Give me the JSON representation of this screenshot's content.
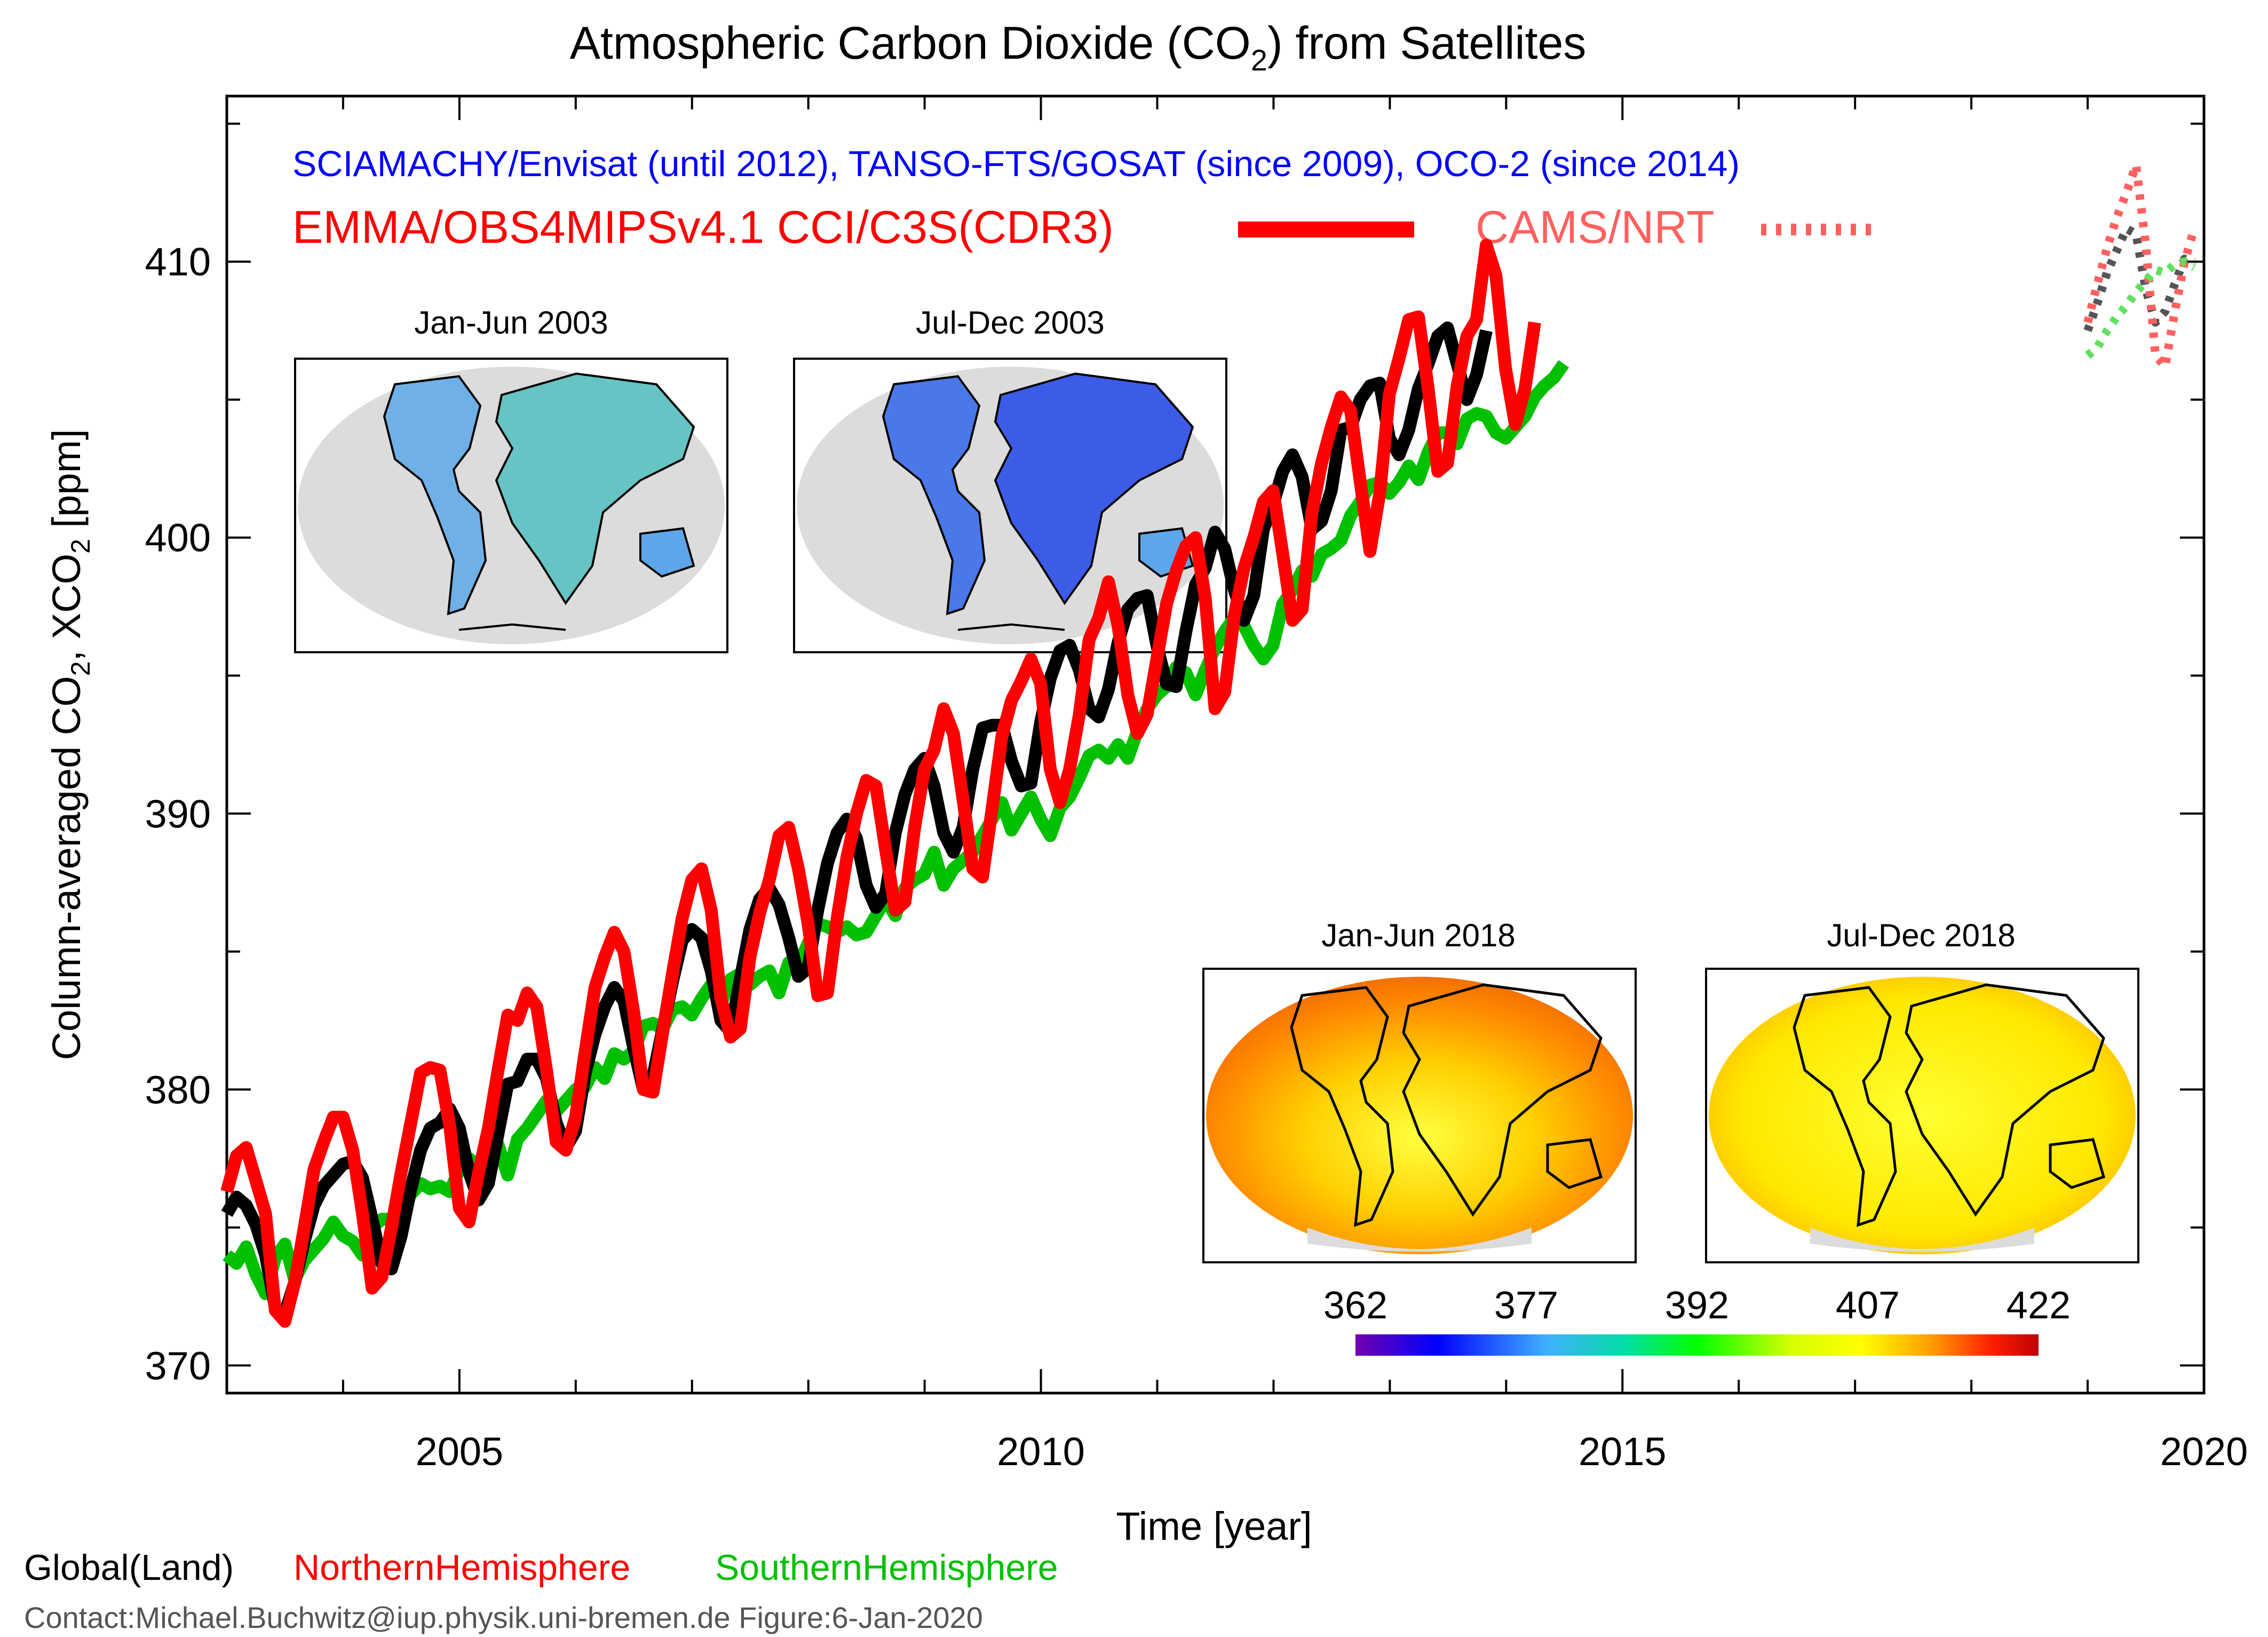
{
  "title": {
    "main": "Atmospheric Carbon Dioxide (CO",
    "sub": "2",
    "tail": ") from Satellites"
  },
  "subtitle_blue": "SCIAMACHY/Envisat (until 2012), TANSO-FTS/GOSAT (since 2009), OCO-2 (since 2014)",
  "legend": {
    "red_product": "EMMA/OBS4MIPSv4.1 CCI/C3S(CDR3)",
    "nrt_product": "CAMS/NRT",
    "global": "Global(Land)",
    "north": "NorthernHemisphere",
    "south": "SouthernHemisphere"
  },
  "ylabel": {
    "p1": "Column-averaged CO",
    "s1": "2",
    "p2": ", XCO",
    "s2": "2",
    "p3": " [ppm]"
  },
  "contact": "Contact:Michael.Buchwitz@iup.physik.uni-bremen.de Figure:6-Jan-2020",
  "maps": {
    "m2003a": "Jan-Jun 2003",
    "m2003b": "Jul-Dec 2003",
    "m2018a": "Jan-Jun 2018",
    "m2018b": "Jul-Dec 2018"
  },
  "colorbar": {
    "ticks": [
      "362",
      "377",
      "392",
      "407",
      "422"
    ]
  },
  "colors": {
    "global": "#000000",
    "north": "#ff0000",
    "south": "#00c000",
    "nrt": "#ff6060",
    "blue": "#0000ff",
    "axis": "#000000"
  },
  "chart_data": {
    "type": "line",
    "title": "Atmospheric Carbon Dioxide (CO2) from Satellites",
    "xlabel": "Time [year]",
    "ylabel": "Column-averaged CO2, XCO2 [ppm]",
    "xlim": [
      2003,
      2020
    ],
    "ylim": [
      369,
      416
    ],
    "xticks": [
      2005,
      2010,
      2015,
      2020
    ],
    "yticks": [
      370,
      380,
      390,
      400,
      410
    ],
    "series": [
      {
        "name": "Global(Land)",
        "color": "#000000",
        "style": "solid",
        "x_start": 2003.0,
        "x_step": 0.0833,
        "values": [
          375.5,
          376.1,
          375.8,
          375.1,
          374.0,
          372.1,
          371.9,
          373.0,
          374.5,
          375.8,
          376.5,
          376.9,
          377.3,
          377.4,
          376.8,
          375.3,
          373.7,
          373.5,
          374.7,
          376.4,
          377.8,
          378.6,
          378.8,
          379.3,
          378.6,
          377.0,
          376.0,
          376.6,
          378.4,
          380.2,
          380.3,
          381.1,
          381.1,
          380.4,
          378.8,
          377.9,
          378.5,
          380.6,
          382.0,
          383.0,
          383.7,
          383.2,
          381.5,
          380.0,
          380.5,
          382.2,
          383.9,
          385.4,
          385.8,
          385.5,
          384.3,
          382.5,
          382.1,
          384.0,
          385.8,
          386.9,
          387.3,
          386.7,
          385.5,
          384.1,
          384.4,
          386.5,
          388.2,
          389.3,
          389.8,
          389.1,
          387.4,
          386.6,
          387.1,
          389.3,
          390.7,
          391.6,
          392.0,
          391.0,
          389.3,
          388.6,
          389.5,
          391.6,
          393.1,
          393.2,
          393.2,
          391.9,
          391.0,
          391.1,
          393.3,
          394.9,
          395.9,
          396.1,
          395.2,
          393.8,
          393.5,
          394.5,
          396.2,
          397.4,
          397.8,
          397.9,
          396.1,
          394.7,
          394.6,
          396.6,
          398.3,
          398.9,
          400.2,
          399.6,
          398.1,
          397.0,
          397.9,
          400.3,
          401.2,
          402.4,
          403.0,
          402.2,
          400.3,
          400.6,
          401.7,
          403.9,
          404.0,
          405.0,
          405.5,
          405.6,
          403.6,
          403.0,
          403.9,
          405.4,
          406.3,
          407.3,
          407.6,
          406.3,
          405.0,
          405.9,
          407.5
        ]
      },
      {
        "name": "NorthernHemisphere",
        "color": "#ff0000",
        "style": "solid",
        "x_start": 2003.0,
        "x_step": 0.0833,
        "values": [
          376.3,
          377.6,
          377.9,
          376.7,
          375.5,
          372.0,
          371.6,
          373.0,
          375.0,
          377.1,
          378.1,
          379.0,
          379.0,
          377.8,
          375.5,
          372.8,
          373.2,
          375.0,
          377.0,
          378.8,
          380.6,
          380.8,
          380.7,
          378.7,
          375.7,
          375.2,
          377.0,
          378.6,
          380.7,
          382.7,
          382.5,
          383.5,
          383.0,
          380.7,
          378.1,
          377.8,
          379.0,
          381.4,
          383.7,
          384.8,
          385.7,
          385.0,
          382.8,
          380.0,
          379.9,
          382.1,
          384.2,
          386.2,
          387.6,
          388.0,
          386.5,
          383.3,
          381.9,
          382.2,
          384.8,
          386.4,
          387.6,
          389.2,
          389.5,
          388.0,
          386.0,
          383.4,
          383.5,
          386.2,
          388.4,
          390.0,
          391.2,
          391.0,
          388.7,
          386.5,
          386.8,
          389.5,
          391.6,
          392.3,
          393.8,
          392.9,
          390.5,
          388.0,
          387.7,
          390.2,
          392.8,
          394.1,
          394.8,
          395.6,
          394.7,
          391.6,
          390.4,
          391.6,
          393.6,
          396.3,
          397.1,
          398.4,
          396.8,
          394.3,
          392.9,
          393.6,
          395.6,
          397.6,
          398.8,
          399.7,
          400.0,
          397.8,
          393.8,
          394.4,
          397.2,
          398.9,
          400.0,
          401.3,
          401.7,
          399.4,
          397.0,
          397.4,
          400.9,
          402.7,
          404.0,
          405.1,
          404.6,
          402.0,
          399.5,
          401.6,
          405.2,
          406.5,
          407.9,
          408.0,
          405.4,
          402.4,
          402.7,
          405.5,
          407.3,
          407.9,
          410.6,
          409.5,
          406.1,
          404.1,
          405.4,
          407.8
        ]
      },
      {
        "name": "SouthernHemisphere",
        "color": "#00c000",
        "style": "solid",
        "x_start": 2003.0,
        "x_step": 0.0833,
        "values": [
          374.0,
          373.7,
          374.3,
          373.3,
          372.6,
          373.9,
          374.4,
          373.1,
          373.8,
          374.2,
          374.6,
          375.2,
          374.7,
          374.5,
          374.0,
          375.0,
          375.3,
          375.3,
          375.6,
          376.2,
          376.6,
          376.4,
          376.5,
          376.3,
          377.1,
          377.5,
          377.2,
          377.8,
          378.0,
          376.9,
          378.2,
          378.6,
          379.1,
          379.6,
          379.2,
          379.6,
          380.0,
          380.1,
          380.8,
          380.4,
          381.3,
          381.1,
          381.4,
          382.3,
          382.4,
          382.2,
          382.9,
          383.0,
          382.7,
          383.3,
          383.8,
          383.1,
          384.0,
          384.2,
          383.8,
          384.1,
          384.3,
          383.5,
          384.6,
          384.5,
          385.3,
          386.0,
          385.9,
          385.7,
          385.9,
          385.6,
          385.7,
          386.3,
          386.9,
          386.3,
          387.3,
          387.6,
          387.8,
          388.6,
          387.4,
          388.0,
          388.3,
          388.6,
          389.2,
          389.8,
          390.4,
          389.4,
          390.0,
          390.6,
          389.8,
          389.2,
          390.2,
          390.6,
          391.3,
          392.1,
          392.3,
          392.0,
          392.5,
          392.0,
          393.0,
          393.8,
          394.3,
          394.6,
          395.3,
          395.1,
          394.3,
          395.2,
          396.0,
          396.6,
          397.1,
          396.8,
          396.1,
          395.6,
          396.1,
          397.6,
          398.1,
          398.8,
          398.6,
          399.4,
          399.6,
          399.9,
          400.8,
          401.3,
          401.9,
          402.0,
          401.6,
          402.0,
          402.6,
          402.1,
          403.1,
          403.8,
          403.8,
          403.4,
          404.3,
          404.5,
          404.4,
          403.8,
          403.6,
          404.0,
          404.4,
          405.1,
          405.5,
          405.8,
          406.3
        ]
      },
      {
        "name": "CAMS/NRT Global",
        "color": "#555555",
        "style": "dotted",
        "x_start": 2019.0,
        "x_step": 0.0833,
        "values": [
          407.5,
          408.5,
          409.6,
          410.4,
          411.2,
          411.0,
          409.0,
          407.8,
          408.2,
          409.2,
          410.1,
          410.0
        ]
      },
      {
        "name": "CAMS/NRT North",
        "color": "#ff6060",
        "style": "dotted",
        "x_start": 2019.0,
        "x_step": 0.0833,
        "values": [
          407.8,
          409.2,
          410.5,
          411.6,
          412.5,
          413.5,
          410.6,
          406.6,
          406.2,
          408.2,
          410.0,
          411.2
        ]
      },
      {
        "name": "CAMS/NRT South",
        "color": "#60e060",
        "style": "dotted",
        "x_start": 2019.0,
        "x_step": 0.0833,
        "values": [
          406.6,
          406.9,
          407.5,
          408.0,
          408.4,
          408.9,
          409.3,
          409.7,
          409.6,
          409.9,
          410.0,
          409.8
        ]
      }
    ]
  }
}
